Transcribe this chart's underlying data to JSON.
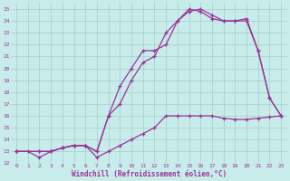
{
  "xlabel": "Windchill (Refroidissement éolien,°C)",
  "bg_color": "#c8ecea",
  "grid_color": "#a8d4d0",
  "line_color": "#993399",
  "xlim": [
    -0.5,
    23.5
  ],
  "ylim": [
    12,
    25.5
  ],
  "xticks": [
    0,
    1,
    2,
    3,
    4,
    5,
    6,
    7,
    8,
    9,
    10,
    11,
    12,
    13,
    14,
    15,
    16,
    17,
    18,
    19,
    20,
    21,
    22,
    23
  ],
  "yticks": [
    12,
    13,
    14,
    15,
    16,
    17,
    18,
    19,
    20,
    21,
    22,
    23,
    24,
    25
  ],
  "line1_x": [
    0,
    1,
    2,
    3,
    4,
    5,
    6,
    7,
    8,
    9,
    10,
    11,
    12,
    13,
    14,
    15,
    16,
    17,
    18,
    19,
    20,
    21,
    22,
    23
  ],
  "line1_y": [
    13,
    13,
    12.5,
    13,
    13.3,
    13.5,
    13.5,
    12.5,
    13,
    13.5,
    14,
    14.5,
    15,
    16,
    16,
    16,
    16,
    16,
    15.8,
    15.7,
    15.7,
    15.8,
    15.9,
    16
  ],
  "line2_x": [
    0,
    2,
    3,
    4,
    5,
    6,
    7,
    8,
    9,
    10,
    11,
    12,
    13,
    14,
    15,
    16,
    17,
    18,
    19,
    20,
    21,
    22,
    23
  ],
  "line2_y": [
    13,
    13,
    13,
    13.3,
    13.5,
    13.5,
    13,
    16,
    18.5,
    20,
    21.5,
    21.5,
    22,
    24,
    24.8,
    25,
    24.5,
    24,
    24,
    24,
    21.5,
    17.5,
    16
  ],
  "line3_x": [
    0,
    2,
    3,
    4,
    5,
    6,
    7,
    8,
    9,
    10,
    11,
    12,
    13,
    14,
    15,
    16,
    17,
    18,
    19,
    20,
    21,
    22,
    23
  ],
  "line3_y": [
    13,
    13,
    13,
    13.3,
    13.5,
    13.5,
    13,
    16,
    17,
    19,
    20.5,
    21,
    23,
    24,
    25,
    24.8,
    24.2,
    24,
    24,
    24.2,
    21.5,
    17.5,
    16
  ]
}
